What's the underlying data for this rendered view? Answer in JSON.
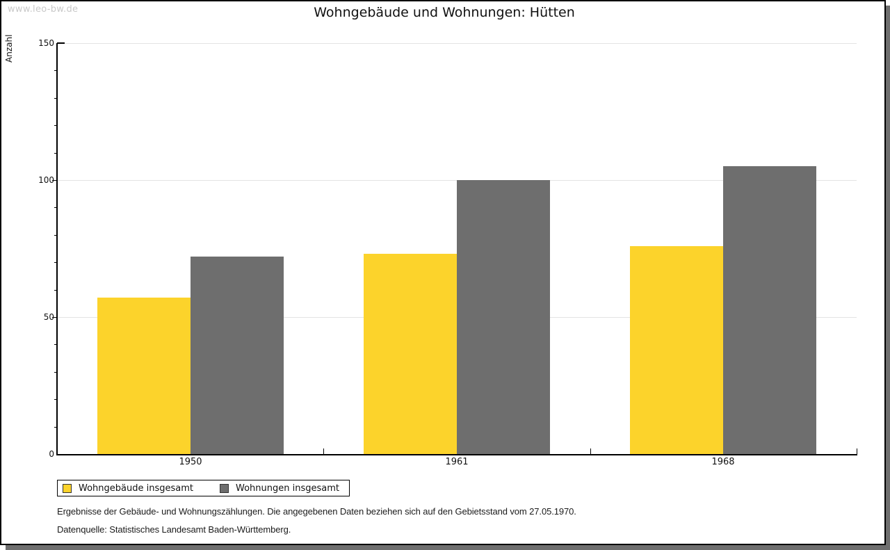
{
  "page": {
    "watermark": "www.leo-bw.de",
    "title": "Wohngebäude und Wohnungen: Hütten"
  },
  "chart_data": {
    "type": "bar",
    "title": "Wohngebäude und Wohnungen: Hütten",
    "categories": [
      "1950",
      "1961",
      "1968"
    ],
    "series": [
      {
        "name": "Wohngebäude insgesamt",
        "color": "#FCD32B",
        "values": [
          57,
          73,
          76
        ]
      },
      {
        "name": "Wohnungen insgesamt",
        "color": "#6E6E6E",
        "values": [
          72,
          100,
          105
        ]
      }
    ],
    "xlabel": "",
    "ylabel": "Anzahl",
    "ylim": [
      0,
      150
    ],
    "yticks": [
      0,
      50,
      100,
      150
    ],
    "minor_tick_step": 10,
    "grid": true,
    "legend_position": "bottom-left",
    "gridline_color": "#E3E3E3"
  },
  "footer": {
    "line1": "Ergebnisse der Gebäude- und Wohnungszählungen. Die angegebenen Daten beziehen sich auf den Gebietsstand vom 27.05.1970.",
    "line2": "Datenquelle: Statistisches Landesamt Baden-Württemberg."
  }
}
